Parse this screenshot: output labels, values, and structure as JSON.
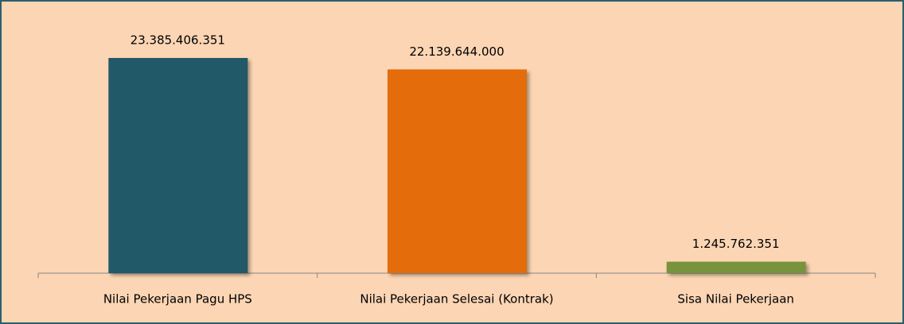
{
  "chart_data": {
    "type": "bar",
    "categories": [
      "Nilai Pekerjaan Pagu HPS",
      "Nilai Pekerjaan Selesai (Kontrak)",
      "Sisa Nilai Pekerjaan"
    ],
    "values": [
      23385406351,
      22139644000,
      1245762351
    ],
    "value_labels": [
      "23.385.406.351",
      "22.139.644.000",
      "1.245.762.351"
    ],
    "colors": [
      "#215968",
      "#e46c0a",
      "#77933c"
    ]
  }
}
